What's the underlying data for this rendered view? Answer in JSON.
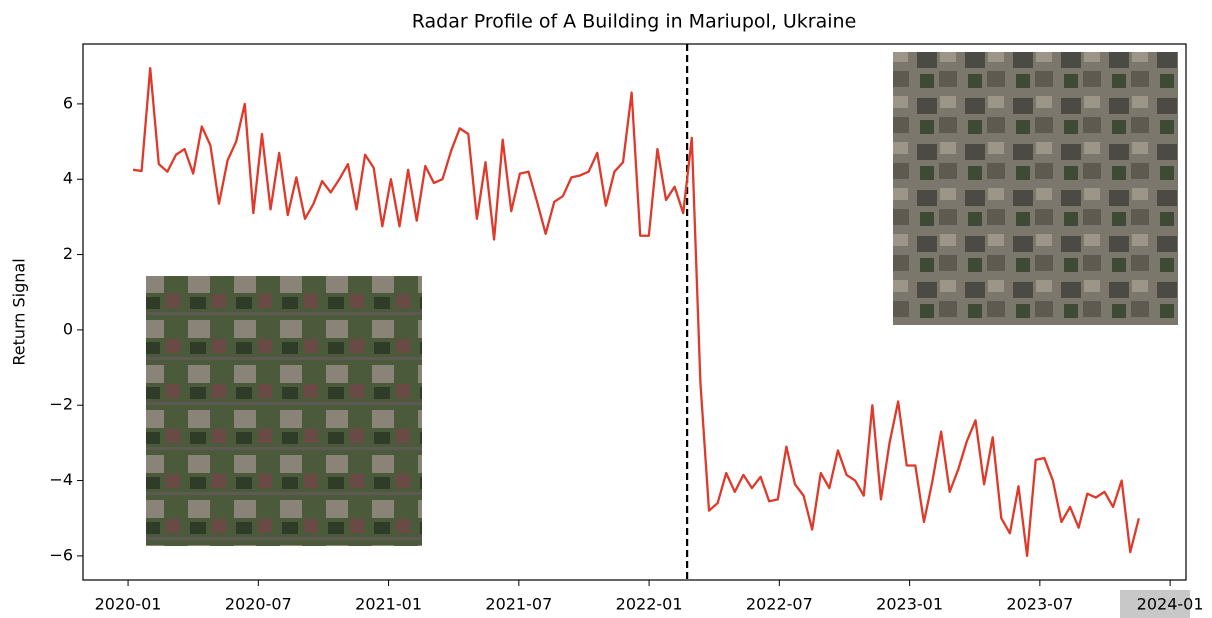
{
  "chart_data": {
    "type": "line",
    "title": "Radar Profile of A Building in Mariupol, Ukraine",
    "y_label": "Return Signal",
    "x": [
      2020.019,
      2020.052,
      2020.085,
      2020.118,
      2020.151,
      2020.184,
      2020.217,
      2020.25,
      2020.283,
      2020.316,
      2020.349,
      2020.382,
      2020.415,
      2020.448,
      2020.481,
      2020.514,
      2020.547,
      2020.58,
      2020.613,
      2020.646,
      2020.679,
      2020.712,
      2020.745,
      2020.778,
      2020.811,
      2020.844,
      2020.877,
      2020.91,
      2020.943,
      2020.976,
      2021.009,
      2021.042,
      2021.075,
      2021.108,
      2021.141,
      2021.174,
      2021.207,
      2021.24,
      2021.273,
      2021.306,
      2021.339,
      2021.372,
      2021.405,
      2021.438,
      2021.471,
      2021.504,
      2021.537,
      2021.57,
      2021.603,
      2021.636,
      2021.669,
      2021.702,
      2021.735,
      2021.768,
      2021.801,
      2021.834,
      2021.867,
      2021.9,
      2021.933,
      2021.966,
      2021.999,
      2022.032,
      2022.065,
      2022.098,
      2022.131,
      2022.164,
      2022.197,
      2022.23,
      2022.263,
      2022.296,
      2022.329,
      2022.362,
      2022.395,
      2022.428,
      2022.461,
      2022.494,
      2022.527,
      2022.56,
      2022.593,
      2022.626,
      2022.659,
      2022.692,
      2022.725,
      2022.758,
      2022.791,
      2022.824,
      2022.857,
      2022.89,
      2022.923,
      2022.956,
      2022.989,
      2023.022,
      2023.055,
      2023.088,
      2023.121,
      2023.154,
      2023.187,
      2023.22,
      2023.253,
      2023.286,
      2023.319,
      2023.352,
      2023.385,
      2023.418,
      2023.451,
      2023.484,
      2023.517,
      2023.55,
      2023.583,
      2023.616,
      2023.649,
      2023.682,
      2023.715,
      2023.748,
      2023.781,
      2023.814,
      2023.847,
      2023.88
    ],
    "values": [
      4.25,
      4.22,
      6.95,
      4.4,
      4.2,
      4.65,
      4.8,
      4.15,
      5.4,
      4.9,
      3.35,
      4.5,
      5.0,
      6.0,
      3.1,
      5.2,
      3.2,
      4.7,
      3.05,
      4.05,
      2.95,
      3.35,
      3.95,
      3.65,
      4.0,
      4.4,
      3.2,
      4.65,
      4.3,
      2.75,
      4.0,
      2.75,
      4.25,
      2.9,
      4.35,
      3.9,
      4.0,
      4.75,
      5.35,
      5.2,
      2.95,
      4.45,
      2.4,
      5.05,
      3.15,
      4.15,
      4.2,
      3.4,
      2.55,
      3.4,
      3.55,
      4.05,
      4.1,
      4.2,
      4.7,
      3.3,
      4.2,
      4.45,
      6.3,
      2.5,
      2.5,
      4.8,
      3.45,
      3.8,
      3.1,
      5.1,
      -1.4,
      -4.8,
      -4.6,
      -3.8,
      -4.3,
      -3.85,
      -4.2,
      -3.9,
      -4.55,
      -4.5,
      -3.1,
      -4.1,
      -4.4,
      -5.3,
      -3.8,
      -4.2,
      -3.2,
      -3.85,
      -4.0,
      -4.4,
      -2.0,
      -4.5,
      -3.0,
      -1.9,
      -3.6,
      -3.6,
      -5.1,
      -4.0,
      -2.7,
      -4.3,
      -3.7,
      -2.95,
      -2.4,
      -4.1,
      -2.85,
      -5.0,
      -5.4,
      -4.15,
      -6.0,
      -3.45,
      -3.4,
      -4.0,
      -5.1,
      -4.7,
      -5.25,
      -4.35,
      -4.45,
      -4.3,
      -4.7,
      -4.0,
      -5.9,
      -5.0
    ],
    "color": "#e0392a",
    "vline": 2022.146,
    "xlim": [
      2019.827,
      2024.061
    ],
    "ylim": [
      -6.64,
      7.59
    ],
    "xticks": [
      {
        "value": 2020.0,
        "label": "2020-01"
      },
      {
        "value": 2020.5,
        "label": "2020-07"
      },
      {
        "value": 2021.0,
        "label": "2021-01"
      },
      {
        "value": 2021.5,
        "label": "2021-07"
      },
      {
        "value": 2022.0,
        "label": "2022-01"
      },
      {
        "value": 2022.5,
        "label": "2022-07"
      },
      {
        "value": 2023.0,
        "label": "2023-01"
      },
      {
        "value": 2023.5,
        "label": "2023-07"
      },
      {
        "value": 2024.0,
        "label": "2024-01"
      }
    ],
    "yticks": [
      {
        "value": -6,
        "label": "−6"
      },
      {
        "value": -4,
        "label": "−4"
      },
      {
        "value": -2,
        "label": "−2"
      },
      0,
      2,
      4,
      6
    ],
    "grid": false
  }
}
